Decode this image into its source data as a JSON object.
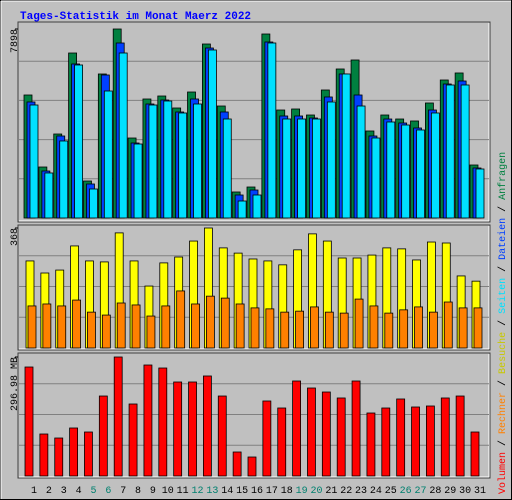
{
  "chart_data": [
    {
      "type": "bar",
      "title": "Tages-Statistik im Monat Maerz 2022",
      "ylim": [
        0,
        7898
      ],
      "yticks": [
        7898
      ],
      "series": [
        {
          "name": "Anfragen",
          "color": "#008040",
          "values": [
            5140,
            2131,
            3510,
            6895,
            1546,
            6018,
            7898,
            3343,
            4973,
            5098,
            4597,
            5265,
            7271,
            4680,
            1087,
            1295,
            7689,
            4513,
            4555,
            4304,
            5349,
            6227,
            6603,
            3636,
            4304,
            4137,
            4054,
            4806,
            5767,
            6060,
            2215
          ]
        },
        {
          "name": "Dateien",
          "color": "#0040ff",
          "values": [
            4848,
            1964,
            3427,
            6436,
            1421,
            5976,
            7313,
            3134,
            4764,
            4931,
            4430,
            4973,
            7104,
            4430,
            961,
            1170,
            7355,
            4263,
            4263,
            4179,
            5057,
            6018,
            5140,
            3427,
            4137,
            3970,
            3761,
            4513,
            5600,
            5725,
            2090
          ]
        },
        {
          "name": "Seiten",
          "color": "#00e0ff",
          "values": [
            4722,
            1881,
            3218,
            6394,
            1212,
            5307,
            6895,
            3092,
            4722,
            4889,
            4388,
            4764,
            7021,
            4137,
            710,
            961,
            7313,
            4137,
            4137,
            4137,
            4848,
            6018,
            4680,
            3343,
            4012,
            3886,
            3678,
            4388,
            5558,
            5558,
            2048
          ]
        }
      ]
    },
    {
      "type": "bar",
      "ylim": [
        0,
        368
      ],
      "yticks": [
        368
      ],
      "series": [
        {
          "name": "Besuche",
          "color": "#ffff00",
          "values": [
            267,
            230,
            239,
            313,
            267,
            264,
            353,
            267,
            190,
            261,
            279,
            328,
            368,
            307,
            291,
            273,
            267,
            255,
            301,
            350,
            328,
            276,
            276,
            285,
            307,
            304,
            270,
            325,
            322,
            221,
            205
          ]
        },
        {
          "name": "Rechner",
          "color": "#ff8000",
          "values": [
            129,
            135,
            129,
            147,
            110,
            101,
            138,
            132,
            98,
            129,
            175,
            135,
            159,
            153,
            135,
            123,
            120,
            110,
            113,
            126,
            110,
            107,
            150,
            129,
            107,
            117,
            126,
            110,
            141,
            123,
            123
          ]
        }
      ]
    },
    {
      "type": "bar",
      "ylim": [
        0,
        296.98
      ],
      "yticks": [
        {
          "value": 296.98,
          "label": "296.98 MB"
        }
      ],
      "categories": [
        1,
        2,
        3,
        4,
        5,
        6,
        7,
        8,
        9,
        10,
        11,
        12,
        13,
        14,
        15,
        16,
        17,
        18,
        19,
        20,
        21,
        22,
        23,
        24,
        25,
        26,
        27,
        28,
        29,
        30,
        31
      ],
      "category_colors": [
        "#000000",
        "#000000",
        "#000000",
        "#000000",
        "#00806f",
        "#00806f",
        "#000000",
        "#000000",
        "#000000",
        "#000000",
        "#000000",
        "#00806f",
        "#00806f",
        "#000000",
        "#000000",
        "#000000",
        "#000000",
        "#000000",
        "#00806f",
        "#00806f",
        "#000000",
        "#000000",
        "#000000",
        "#000000",
        "#000000",
        "#00806f",
        "#00806f",
        "#000000",
        "#000000",
        "#000000",
        "#000000"
      ],
      "series": [
        {
          "name": "Volumen",
          "color": "#ff0000",
          "values": [
            272.0,
            104.8,
            94.8,
            119.8,
            109.8,
            199.6,
            296.98,
            179.7,
            277.0,
            269.5,
            234.6,
            234.6,
            249.6,
            199.6,
            59.9,
            47.4,
            187.2,
            169.7,
            237.1,
            219.6,
            209.6,
            194.7,
            237.1,
            157.2,
            169.7,
            192.2,
            172.2,
            174.7,
            194.7,
            199.6,
            109.8
          ]
        }
      ]
    }
  ],
  "legend_separator": " / "
}
